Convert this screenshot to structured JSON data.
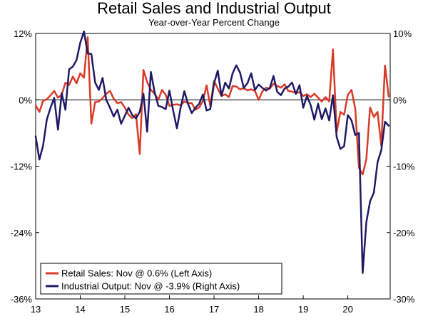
{
  "chart_data": {
    "type": "line",
    "title": "Retail Sales and Industrial Output",
    "subtitle": "Year-over-Year Percent Change",
    "x_ticks": [
      {
        "label": "13",
        "x": 2013.0
      },
      {
        "label": "14",
        "x": 2014.0
      },
      {
        "label": "15",
        "x": 2015.0
      },
      {
        "label": "16",
        "x": 2016.0
      },
      {
        "label": "17",
        "x": 2017.0
      },
      {
        "label": "18",
        "x": 2018.0
      },
      {
        "label": "19",
        "x": 2019.0
      },
      {
        "label": "20",
        "x": 2020.0
      }
    ],
    "xlim": [
      2013.0,
      2020.95
    ],
    "left_axis": {
      "ylim": [
        -36,
        12
      ],
      "ticks": [
        {
          "value": 12,
          "label": "12%"
        },
        {
          "value": 0,
          "label": "0%"
        },
        {
          "value": -12,
          "label": "-12%"
        },
        {
          "value": -24,
          "label": "-24%"
        },
        {
          "value": -36,
          "label": "-36%"
        }
      ]
    },
    "right_axis": {
      "ylim": [
        -30,
        10
      ],
      "ticks": [
        {
          "value": 10,
          "label": "10%"
        },
        {
          "value": 0,
          "label": "0%"
        },
        {
          "value": -10,
          "label": "-10%"
        },
        {
          "value": -20,
          "label": "-20%"
        },
        {
          "value": -30,
          "label": "-30%"
        }
      ]
    },
    "legend": {
      "position": "bottom-left",
      "entries": [
        {
          "label": "Retail Sales: Nov @ 0.6% (Left Axis)",
          "color": "#d83b27"
        },
        {
          "label": "Industrial Output: Nov @ -3.9% (Right Axis)",
          "color": "#1f1a66"
        }
      ]
    },
    "series": [
      {
        "name": "Retail Sales",
        "axis": "left",
        "color": "#d83b27",
        "start": 2013.0,
        "step": 0.08333,
        "values": [
          -1.0,
          -2.2,
          -0.2,
          0.1,
          0.8,
          1.6,
          0.4,
          0.9,
          3.1,
          2.7,
          4.2,
          3.0,
          4.8,
          4.0,
          11.3,
          -4.3,
          -0.4,
          -0.3,
          0.3,
          1.1,
          1.6,
          0.2,
          -0.6,
          -0.4,
          -1.4,
          -2.7,
          -3.3,
          -2.6,
          -9.8,
          5.4,
          3.2,
          1.8,
          1.1,
          0.0,
          1.8,
          0.9,
          -1.1,
          -0.9,
          -0.8,
          -1.0,
          -0.3,
          -0.6,
          -0.6,
          -1.8,
          -1.4,
          -0.2,
          2.6,
          -1.1,
          3.4,
          2.0,
          0.7,
          1.0,
          0.5,
          2.5,
          2.4,
          1.9,
          2.1,
          1.7,
          1.9,
          1.6,
          0.0,
          1.5,
          2.2,
          2.0,
          2.9,
          2.5,
          2.2,
          2.8,
          1.6,
          1.5,
          1.2,
          1.4,
          0.7,
          1.0,
          0.5,
          1.1,
          0.4,
          -0.3,
          0.5,
          -0.3,
          9.1,
          -5.8,
          -2.2,
          -2.7,
          0.9,
          1.8,
          -1.6,
          -12.3,
          -13.5,
          -10.7,
          -1.4,
          -3.1,
          -2.2,
          -8.3,
          6.2,
          0.6
        ]
      },
      {
        "name": "Industrial Output",
        "axis": "right",
        "color": "#1f1a66",
        "start": 2013.0,
        "step": 0.08333,
        "values": [
          -5.5,
          -9.0,
          -6.9,
          -3.0,
          -1.2,
          0.3,
          -4.5,
          1.0,
          -1.5,
          4.6,
          5.0,
          6.0,
          8.6,
          10.3,
          7.0,
          6.9,
          2.6,
          1.5,
          3.3,
          0.0,
          -1.2,
          -2.5,
          -1.5,
          -3.6,
          -2.4,
          -1.2,
          -2.3,
          -2.8,
          -1.8,
          0.9,
          -4.8,
          4.2,
          1.2,
          -0.9,
          -1.1,
          -1.4,
          1.4,
          -1.6,
          -4.3,
          -1.2,
          1.3,
          -0.6,
          -2.0,
          -1.2,
          -0.6,
          0.8,
          -1.6,
          -1.4,
          2.5,
          4.4,
          0.6,
          2.6,
          1.7,
          4.0,
          5.2,
          4.1,
          1.8,
          2.5,
          4.0,
          1.5,
          2.3,
          1.8,
          1.4,
          1.8,
          3.6,
          1.2,
          0.7,
          1.7,
          2.0,
          2.6,
          0.9,
          2.2,
          -1.2,
          0.6,
          -0.8,
          -3.0,
          -0.6,
          -2.9,
          -1.3,
          -3.1,
          0.7,
          -5.6,
          -7.4,
          -7.0,
          -2.3,
          -3.1,
          -5.3,
          -5.0,
          -26.1,
          -18.4,
          -15.3,
          -14.0,
          -9.4,
          -7.6,
          -3.3,
          -3.9
        ]
      }
    ]
  }
}
